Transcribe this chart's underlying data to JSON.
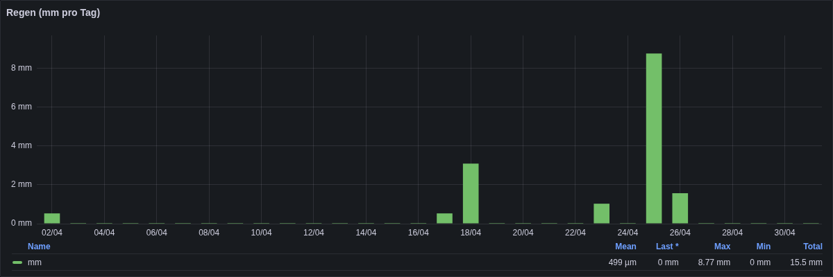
{
  "chart_data": {
    "type": "bar",
    "title": "Regen (mm pro Tag)",
    "x": [
      "--04-02",
      "--04-03",
      "--04-04",
      "--04-05",
      "--04-06",
      "--04-07",
      "--04-08",
      "--04-09",
      "--04-10",
      "--04-11",
      "--04-12",
      "--04-13",
      "--04-14",
      "--04-15",
      "--04-16",
      "--04-17",
      "--04-18",
      "--04-19",
      "--04-20",
      "--04-21",
      "--04-22",
      "--04-23",
      "--04-24",
      "--04-25",
      "--04-26",
      "--04-27",
      "--04-28",
      "--04-29",
      "--04-30",
      "--05-01"
    ],
    "series": [
      {
        "name": "mm",
        "color": "#73bf69",
        "values": [
          0.53,
          0,
          0,
          0,
          0,
          0,
          0,
          0,
          0,
          0,
          0,
          0,
          0,
          0,
          0,
          0.53,
          3.1,
          0,
          0,
          0,
          0,
          1.03,
          0,
          8.77,
          1.57,
          0,
          0,
          0,
          0,
          0
        ]
      }
    ],
    "xlim": [
      "--04-01T10:00",
      "--05-01T10:00"
    ],
    "xticks": [
      {
        "value": "--04-02",
        "label": "02/04"
      },
      {
        "value": "--04-04",
        "label": "04/04"
      },
      {
        "value": "--04-06",
        "label": "06/04"
      },
      {
        "value": "--04-08",
        "label": "08/04"
      },
      {
        "value": "--04-10",
        "label": "10/04"
      },
      {
        "value": "--04-12",
        "label": "12/04"
      },
      {
        "value": "--04-14",
        "label": "14/04"
      },
      {
        "value": "--04-16",
        "label": "16/04"
      },
      {
        "value": "--04-18",
        "label": "18/04"
      },
      {
        "value": "--04-20",
        "label": "20/04"
      },
      {
        "value": "--04-22",
        "label": "22/04"
      },
      {
        "value": "--04-24",
        "label": "24/04"
      },
      {
        "value": "--04-26",
        "label": "26/04"
      },
      {
        "value": "--04-28",
        "label": "28/04"
      },
      {
        "value": "--04-30",
        "label": "30/04"
      }
    ],
    "ylim": [
      0,
      9.7
    ],
    "yticks": [
      {
        "value": 0,
        "label": "0 mm"
      },
      {
        "value": 2,
        "label": "2 mm"
      },
      {
        "value": 4,
        "label": "4 mm"
      },
      {
        "value": 6,
        "label": "6 mm"
      },
      {
        "value": 8,
        "label": "8 mm"
      }
    ],
    "grid": true,
    "legend": "bottom",
    "legend_title": "Name",
    "annotations": [
      "Mean",
      "Last *",
      "Max",
      "Min",
      "Total",
      "499 µm",
      "0 mm",
      "8.77 mm",
      "0 mm",
      "15.5 mm"
    ]
  }
}
